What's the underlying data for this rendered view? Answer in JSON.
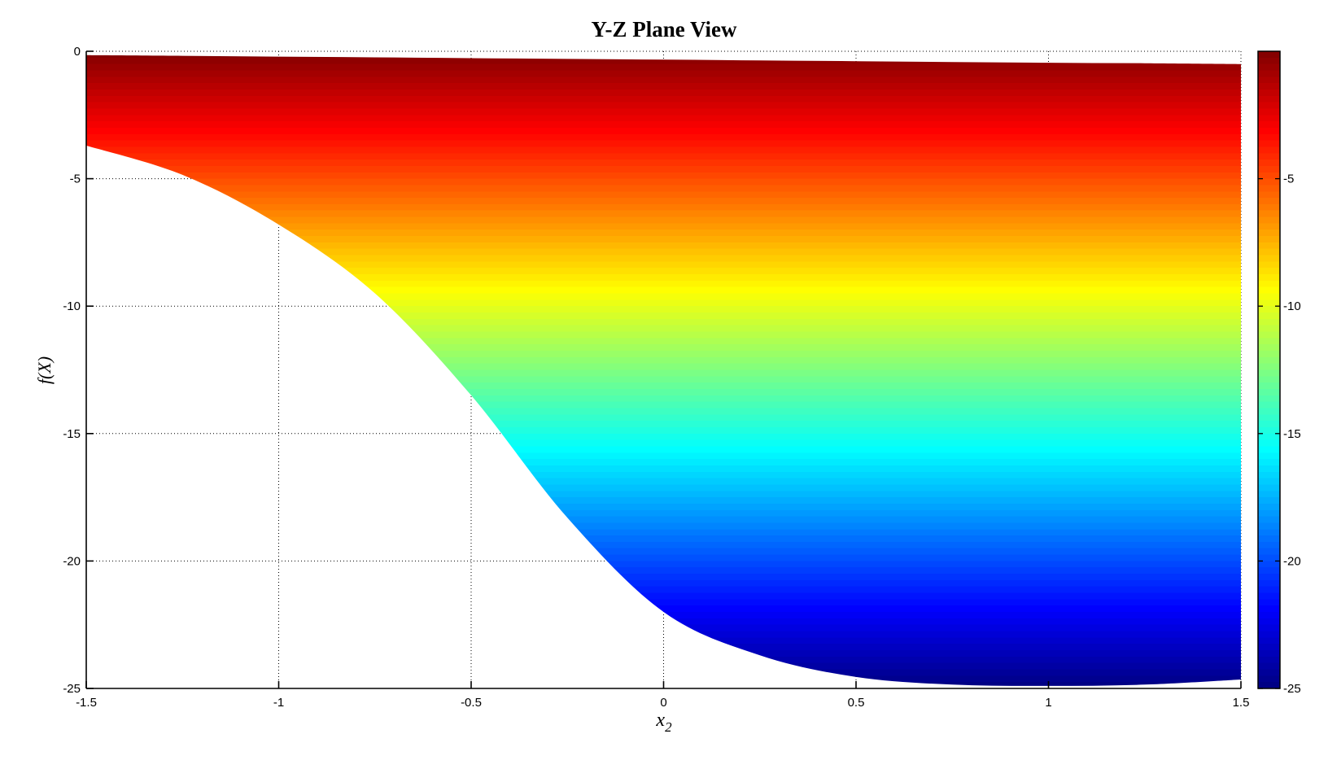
{
  "figure": {
    "background": "#ffffff",
    "axis_color": "#000000",
    "grid_style": "dotted"
  },
  "chart_data": {
    "type": "area",
    "title": "Y-Z Plane View",
    "xlabel_base": "x",
    "xlabel_sub": "2",
    "ylabel": "f(X)",
    "xlim": [
      -1.5,
      1.5
    ],
    "ylim": [
      -25,
      0
    ],
    "x_ticks": [
      {
        "v": -1.5,
        "label": "-1.5"
      },
      {
        "v": -1,
        "label": "-1"
      },
      {
        "v": -0.5,
        "label": "-0.5"
      },
      {
        "v": 0,
        "label": "0"
      },
      {
        "v": 0.5,
        "label": "0.5"
      },
      {
        "v": 1,
        "label": "1"
      },
      {
        "v": 1.5,
        "label": "1.5"
      }
    ],
    "y_ticks": [
      {
        "v": 0,
        "label": "0"
      },
      {
        "v": -5,
        "label": "-5"
      },
      {
        "v": -10,
        "label": "-10"
      },
      {
        "v": -15,
        "label": "-15"
      },
      {
        "v": -20,
        "label": "-20"
      },
      {
        "v": -25,
        "label": "-25"
      }
    ],
    "grid": "dotted",
    "legend": "none",
    "colormap": "jet",
    "caxis": [
      -25,
      0
    ],
    "color_bands": 100,
    "jet_anchors": [
      [
        0.0,
        0,
        0,
        128
      ],
      [
        0.125,
        0,
        0,
        255
      ],
      [
        0.375,
        0,
        255,
        255
      ],
      [
        0.625,
        255,
        255,
        0
      ],
      [
        0.875,
        255,
        0,
        0
      ],
      [
        1.0,
        128,
        0,
        0
      ]
    ],
    "colorbar": {
      "position": "right",
      "ticks": [
        {
          "v": -5,
          "label": "-5"
        },
        {
          "v": -10,
          "label": "-10"
        },
        {
          "v": -15,
          "label": "-15"
        },
        {
          "v": -20,
          "label": "-20"
        },
        {
          "v": -25,
          "label": "-25"
        }
      ]
    },
    "envelope": {
      "x": [
        -1.5,
        -1.25,
        -1.0,
        -0.75,
        -0.5,
        -0.25,
        0.0,
        0.25,
        0.5,
        0.75,
        1.0,
        1.25,
        1.5
      ],
      "upper_f": [
        -0.15,
        -0.18,
        -0.21,
        -0.24,
        -0.27,
        -0.3,
        -0.33,
        -0.36,
        -0.39,
        -0.42,
        -0.45,
        -0.47,
        -0.5
      ],
      "lower_f": [
        -3.7,
        -4.85,
        -6.8,
        -9.5,
        -13.5,
        -18.3,
        -22.0,
        -23.7,
        -24.55,
        -24.85,
        -24.9,
        -24.85,
        -24.65
      ]
    }
  }
}
